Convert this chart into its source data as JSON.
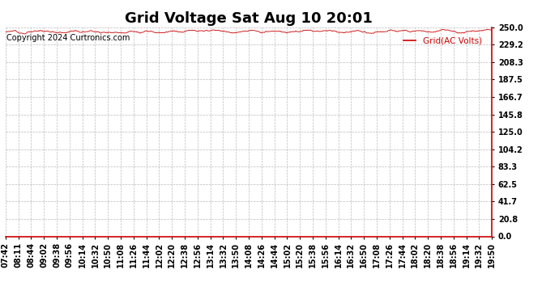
{
  "title": "Grid Voltage Sat Aug 10 20:01",
  "copyright": "Copyright 2024 Curtronics.com",
  "legend_label": "Grid(AC Volts)",
  "legend_color": "#cc0000",
  "line_color": "#cc0000",
  "background_color": "#ffffff",
  "grid_color": "#bbbbbb",
  "ylim": [
    0.0,
    250.0
  ],
  "yticks": [
    0.0,
    20.8,
    41.7,
    62.5,
    83.3,
    104.2,
    125.0,
    145.8,
    166.7,
    187.5,
    208.3,
    229.2,
    250.0
  ],
  "xtick_labels": [
    "07:42",
    "08:11",
    "08:44",
    "09:02",
    "09:38",
    "09:56",
    "10:14",
    "10:32",
    "10:50",
    "11:08",
    "11:26",
    "11:44",
    "12:02",
    "12:20",
    "12:38",
    "12:56",
    "13:14",
    "13:32",
    "13:50",
    "14:08",
    "14:26",
    "14:44",
    "15:02",
    "15:20",
    "15:38",
    "15:56",
    "16:14",
    "16:32",
    "16:50",
    "17:08",
    "17:26",
    "17:44",
    "18:02",
    "18:20",
    "18:38",
    "18:56",
    "19:14",
    "19:32",
    "19:50"
  ],
  "data_mean": 245.0,
  "data_noise": 1.2,
  "title_fontsize": 13,
  "label_fontsize": 7,
  "copyright_fontsize": 7
}
